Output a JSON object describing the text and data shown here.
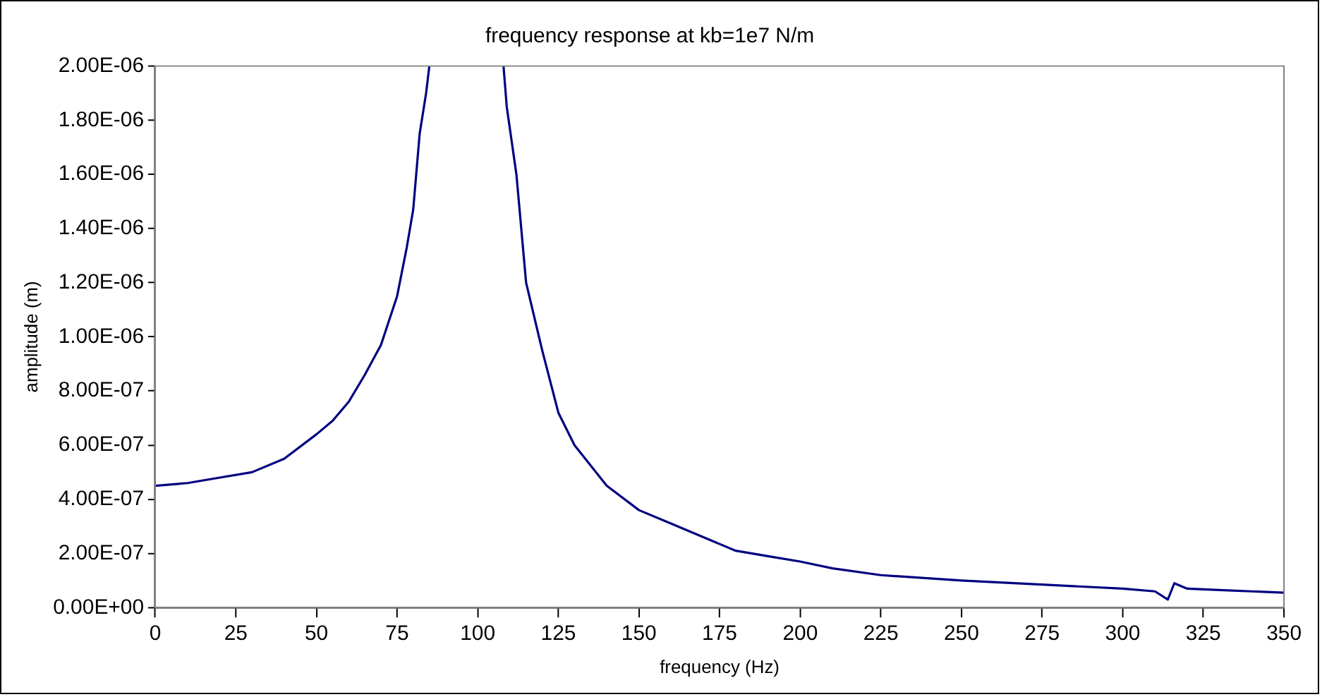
{
  "chart_data": {
    "type": "line",
    "title": "frequency response at kb=1e7 N/m",
    "xlabel": "frequency (Hz)",
    "ylabel": "amplitude (m)",
    "x": [
      0,
      10,
      20,
      30,
      40,
      50,
      55,
      60,
      65,
      70,
      75,
      78,
      80,
      82,
      84,
      85,
      95,
      108,
      109,
      112,
      115,
      120,
      125,
      130,
      140,
      150,
      160,
      170,
      180,
      190,
      200,
      210,
      225,
      250,
      275,
      300,
      310,
      314,
      316,
      320,
      330,
      350
    ],
    "series": [
      {
        "color": "#000080",
        "values": [
          4.5e-07,
          4.6e-07,
          4.8e-07,
          5e-07,
          5.5e-07,
          6.4e-07,
          6.9e-07,
          7.6e-07,
          8.6e-07,
          9.7e-07,
          1.15e-06,
          1.33e-06,
          1.47e-06,
          1.75e-06,
          1.9e-06,
          2e-06,
          null,
          2e-06,
          1.85e-06,
          1.6e-06,
          1.2e-06,
          9.5e-07,
          7.2e-07,
          6e-07,
          4.5e-07,
          3.6e-07,
          3.1e-07,
          2.6e-07,
          2.1e-07,
          1.9e-07,
          1.7e-07,
          1.45e-07,
          1.2e-07,
          1e-07,
          8.5e-08,
          7e-08,
          6e-08,
          3e-08,
          9e-08,
          7e-08,
          6.5e-08,
          5.5e-08
        ]
      }
    ],
    "xlim": [
      0,
      350
    ],
    "xticks": [
      0,
      25,
      50,
      75,
      100,
      125,
      150,
      175,
      200,
      225,
      250,
      275,
      300,
      325,
      350
    ],
    "ylim": [
      0,
      2e-06
    ],
    "yticks": [
      {
        "value": 0,
        "label": "0.00E+00"
      },
      {
        "value": 2e-07,
        "label": "2.00E-07"
      },
      {
        "value": 4e-07,
        "label": "4.00E-07"
      },
      {
        "value": 6e-07,
        "label": "6.00E-07"
      },
      {
        "value": 8e-07,
        "label": "8.00E-07"
      },
      {
        "value": 1e-06,
        "label": "1.00E-06"
      },
      {
        "value": 1.2e-06,
        "label": "1.20E-06"
      },
      {
        "value": 1.4e-06,
        "label": "1.40E-06"
      },
      {
        "value": 1.6e-06,
        "label": "1.60E-06"
      },
      {
        "value": 1.8e-06,
        "label": "1.80E-06"
      },
      {
        "value": 2e-06,
        "label": "2.00E-06"
      }
    ],
    "grid": false,
    "legend": false,
    "marker": "none",
    "line_style": "solid"
  }
}
